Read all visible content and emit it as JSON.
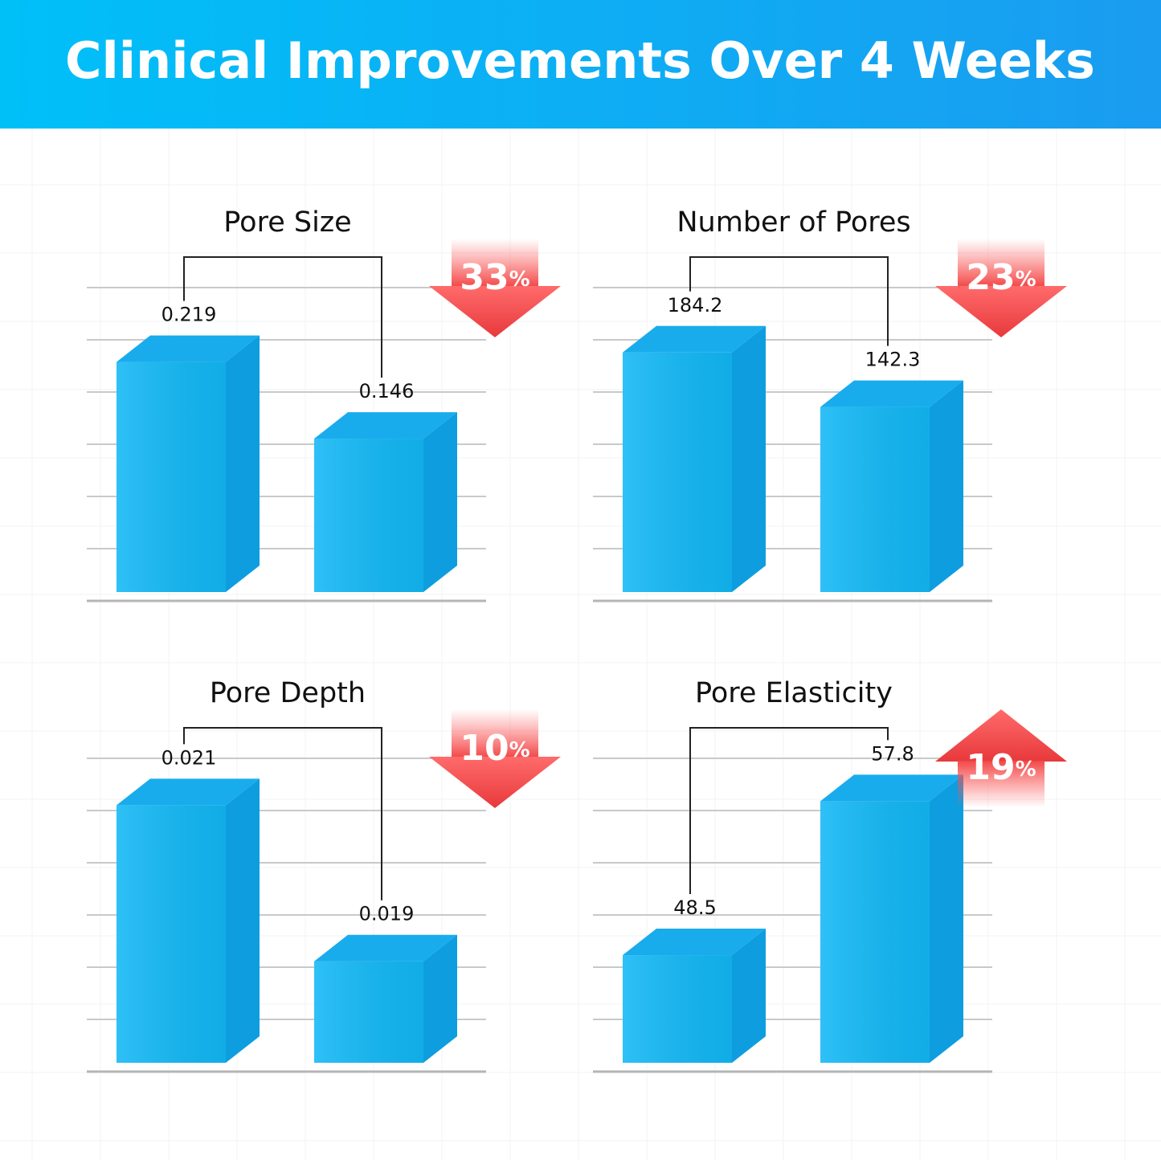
{
  "title": "Clinical Improvements Over 4 Weeks",
  "chart_data": [
    {
      "type": "bar",
      "title": "Pore Size",
      "values": [
        0.219,
        0.146
      ],
      "color": "#12b8f6",
      "ylim": [
        0,
        0.26
      ],
      "grid": true,
      "annotation": "33%",
      "arrow": "down"
    },
    {
      "type": "bar",
      "title": "Number of Pores",
      "values": [
        184.2,
        142.3
      ],
      "color": "#12b8f6",
      "ylim": [
        0,
        210
      ],
      "grid": true,
      "annotation": "23%",
      "arrow": "down"
    },
    {
      "type": "bar",
      "title": "Pore Depth",
      "values": [
        0.021,
        0.019
      ],
      "color": "#12b8f6",
      "ylim": [
        0.0177,
        0.0212
      ],
      "grid": true,
      "annotation": "10%",
      "arrow": "down"
    },
    {
      "type": "bar",
      "title": "Pore Elasticity",
      "values": [
        48.5,
        57.8
      ],
      "color": "#12b8f6",
      "ylim": [
        42,
        58.5
      ],
      "grid": true,
      "annotation": "19%",
      "arrow": "up"
    }
  ]
}
